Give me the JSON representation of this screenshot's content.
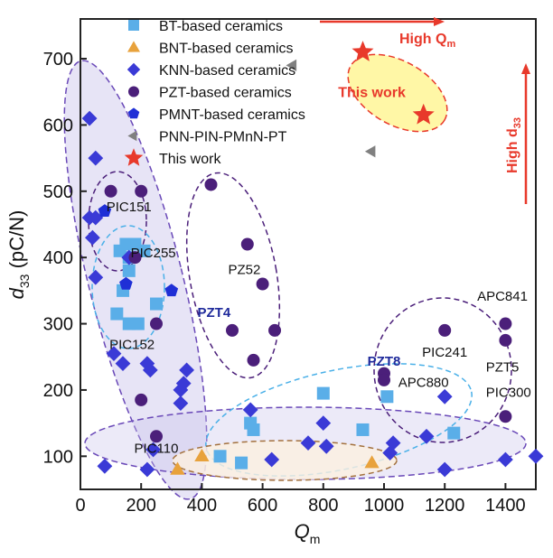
{
  "chart_data": {
    "type": "scatter",
    "xlabel": "Q",
    "xlabel_sub": "m",
    "ylabel": "d",
    "ylabel_sub": "33",
    "ylabel_unit": " (pC/N)",
    "xlim": [
      0,
      1500
    ],
    "ylim": [
      50,
      760
    ],
    "x_ticks": [
      0,
      200,
      400,
      600,
      800,
      1000,
      1200,
      1400
    ],
    "y_ticks": [
      100,
      200,
      300,
      400,
      500,
      600,
      700
    ],
    "grid": false,
    "legend_position": "top-left",
    "series": [
      {
        "name": "BT-based ceramics",
        "marker": "square",
        "color": "#5aaee8",
        "points": [
          [
            130,
            410
          ],
          [
            150,
            420
          ],
          [
            180,
            420
          ],
          [
            120,
            315
          ],
          [
            140,
            350
          ],
          [
            160,
            380
          ],
          [
            160,
            300
          ],
          [
            190,
            300
          ],
          [
            250,
            330
          ],
          [
            560,
            150
          ],
          [
            570,
            140
          ],
          [
            460,
            100
          ],
          [
            530,
            90
          ],
          [
            800,
            195
          ],
          [
            930,
            140
          ],
          [
            1010,
            190
          ],
          [
            1230,
            135
          ],
          [
            160,
            400
          ],
          [
            210,
            410
          ]
        ]
      },
      {
        "name": "BNT-based ceramics",
        "marker": "triangle-up",
        "color": "#e8a23c",
        "points": [
          [
            320,
            80
          ],
          [
            400,
            100
          ],
          [
            960,
            90
          ]
        ]
      },
      {
        "name": "KNN-based ceramics",
        "marker": "diamond",
        "color": "#3a3ad6",
        "points": [
          [
            30,
            610
          ],
          [
            50,
            550
          ],
          [
            40,
            430
          ],
          [
            50,
            460
          ],
          [
            30,
            460
          ],
          [
            50,
            370
          ],
          [
            160,
            400
          ],
          [
            110,
            255
          ],
          [
            140,
            240
          ],
          [
            220,
            240
          ],
          [
            230,
            230
          ],
          [
            330,
            200
          ],
          [
            340,
            210
          ],
          [
            330,
            180
          ],
          [
            350,
            230
          ],
          [
            80,
            85
          ],
          [
            220,
            80
          ],
          [
            560,
            170
          ],
          [
            630,
            95
          ],
          [
            750,
            120
          ],
          [
            800,
            150
          ],
          [
            810,
            115
          ],
          [
            1020,
            105
          ],
          [
            1030,
            120
          ],
          [
            1140,
            130
          ],
          [
            1200,
            190
          ],
          [
            1200,
            80
          ],
          [
            1400,
            95
          ],
          [
            1500,
            100
          ],
          [
            240,
            110
          ]
        ]
      },
      {
        "name": "PZT-based ceramics",
        "marker": "circle",
        "color": "#4b1f7a",
        "points": [
          [
            100,
            500
          ],
          [
            200,
            500
          ],
          [
            180,
            400
          ],
          [
            250,
            300
          ],
          [
            200,
            185
          ],
          [
            250,
            130
          ],
          [
            430,
            510
          ],
          [
            550,
            420
          ],
          [
            600,
            360
          ],
          [
            640,
            290
          ],
          [
            500,
            290
          ],
          [
            570,
            245
          ],
          [
            1000,
            225
          ],
          [
            1000,
            215
          ],
          [
            1200,
            290
          ],
          [
            1400,
            300
          ],
          [
            1400,
            275
          ],
          [
            1400,
            160
          ]
        ]
      },
      {
        "name": "PMNT-based ceramics",
        "marker": "pentagon",
        "color": "#1f2fd6",
        "points": [
          [
            80,
            470
          ],
          [
            150,
            360
          ],
          [
            300,
            350
          ]
        ]
      },
      {
        "name": "PNN-PIN-PMnN-PT",
        "marker": "triangle-left",
        "color": "#808080",
        "points": [
          [
            700,
            690
          ],
          [
            960,
            560
          ]
        ]
      },
      {
        "name": "This work",
        "marker": "star",
        "color": "#e8392b",
        "points": [
          [
            930,
            710
          ],
          [
            1130,
            615
          ]
        ]
      }
    ],
    "annotations": [
      {
        "text": "PIC151",
        "x": 160,
        "y": 470,
        "bold": false
      },
      {
        "text": "PIC255",
        "x": 240,
        "y": 400,
        "bold": false
      },
      {
        "text": "PIC152",
        "x": 170,
        "y": 262,
        "bold": false
      },
      {
        "text": "PZ52",
        "x": 540,
        "y": 375,
        "bold": false
      },
      {
        "text": "PZT4",
        "x": 440,
        "y": 310,
        "bold": true
      },
      {
        "text": "PZT8",
        "x": 1000,
        "y": 237,
        "bold": true
      },
      {
        "text": "APC880",
        "x": 1130,
        "y": 205,
        "bold": false
      },
      {
        "text": "PIC241",
        "x": 1200,
        "y": 250,
        "bold": false
      },
      {
        "text": "APC841",
        "x": 1390,
        "y": 335,
        "bold": false
      },
      {
        "text": "PZT5",
        "x": 1390,
        "y": 228,
        "bold": false
      },
      {
        "text": "PIC300",
        "x": 1410,
        "y": 190,
        "bold": false
      },
      {
        "text": "PIC110",
        "x": 250,
        "y": 105,
        "bold": false
      },
      {
        "text": "This work",
        "x": 960,
        "y": 642,
        "red": true
      }
    ],
    "arrow_labels": {
      "high_qm": "High Q",
      "high_qm_sub": "m",
      "high_d33": "High d",
      "high_d33_sub": "33"
    }
  }
}
